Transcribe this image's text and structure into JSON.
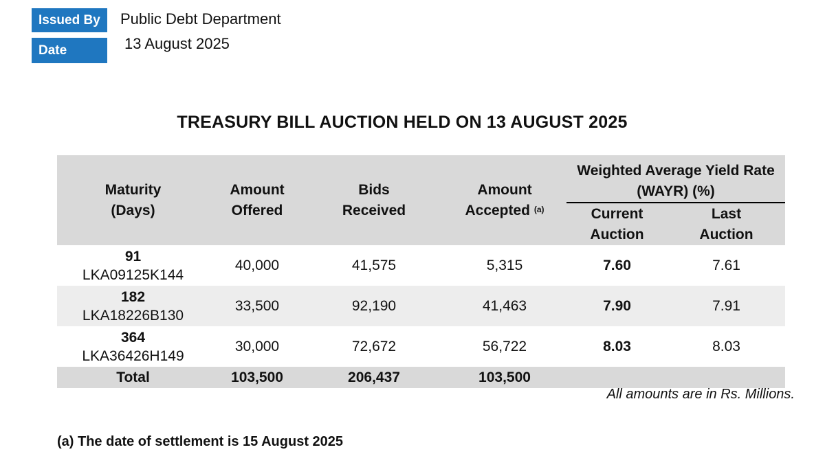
{
  "header": {
    "issued_by_label": "Issued By",
    "issued_by_value": "Public Debt Department",
    "date_label": "Date",
    "date_value": "13 August 2025"
  },
  "title": "TREASURY BILL AUCTION HELD ON 13 AUGUST 2025",
  "table": {
    "headers": {
      "maturity_l1": "Maturity",
      "maturity_l2": "(Days)",
      "offered_l1": "Amount",
      "offered_l2": "Offered",
      "bids_l1": "Bids",
      "bids_l2": "Received",
      "accepted_l1": "Amount",
      "accepted_l2": "Accepted",
      "accepted_sup": "(a)",
      "wayr_l1": "Weighted Average Yield Rate",
      "wayr_l2": "(WAYR) (%)",
      "current_l1": "Current",
      "current_l2": "Auction",
      "last_l1": "Last",
      "last_l2": "Auction"
    },
    "rows": [
      {
        "days": "91",
        "code": "LKA09125K144",
        "offered": "40,000",
        "bids": "41,575",
        "accepted": "5,315",
        "current": "7.60",
        "last": "7.61"
      },
      {
        "days": "182",
        "code": "LKA18226B130",
        "offered": "33,500",
        "bids": "92,190",
        "accepted": "41,463",
        "current": "7.90",
        "last": "7.91"
      },
      {
        "days": "364",
        "code": "LKA36426H149",
        "offered": "30,000",
        "bids": "72,672",
        "accepted": "56,722",
        "current": "8.03",
        "last": "8.03"
      }
    ],
    "total": {
      "label": "Total",
      "offered": "103,500",
      "bids": "206,437",
      "accepted": "103,500"
    }
  },
  "note": "All amounts are in Rs. Millions.",
  "footnote": "(a) The date of settlement is 15 August 2025",
  "colors": {
    "tag_blue": "#1f77c0",
    "header_gray": "#d9d9d9",
    "alt_row_gray": "#ededed"
  }
}
